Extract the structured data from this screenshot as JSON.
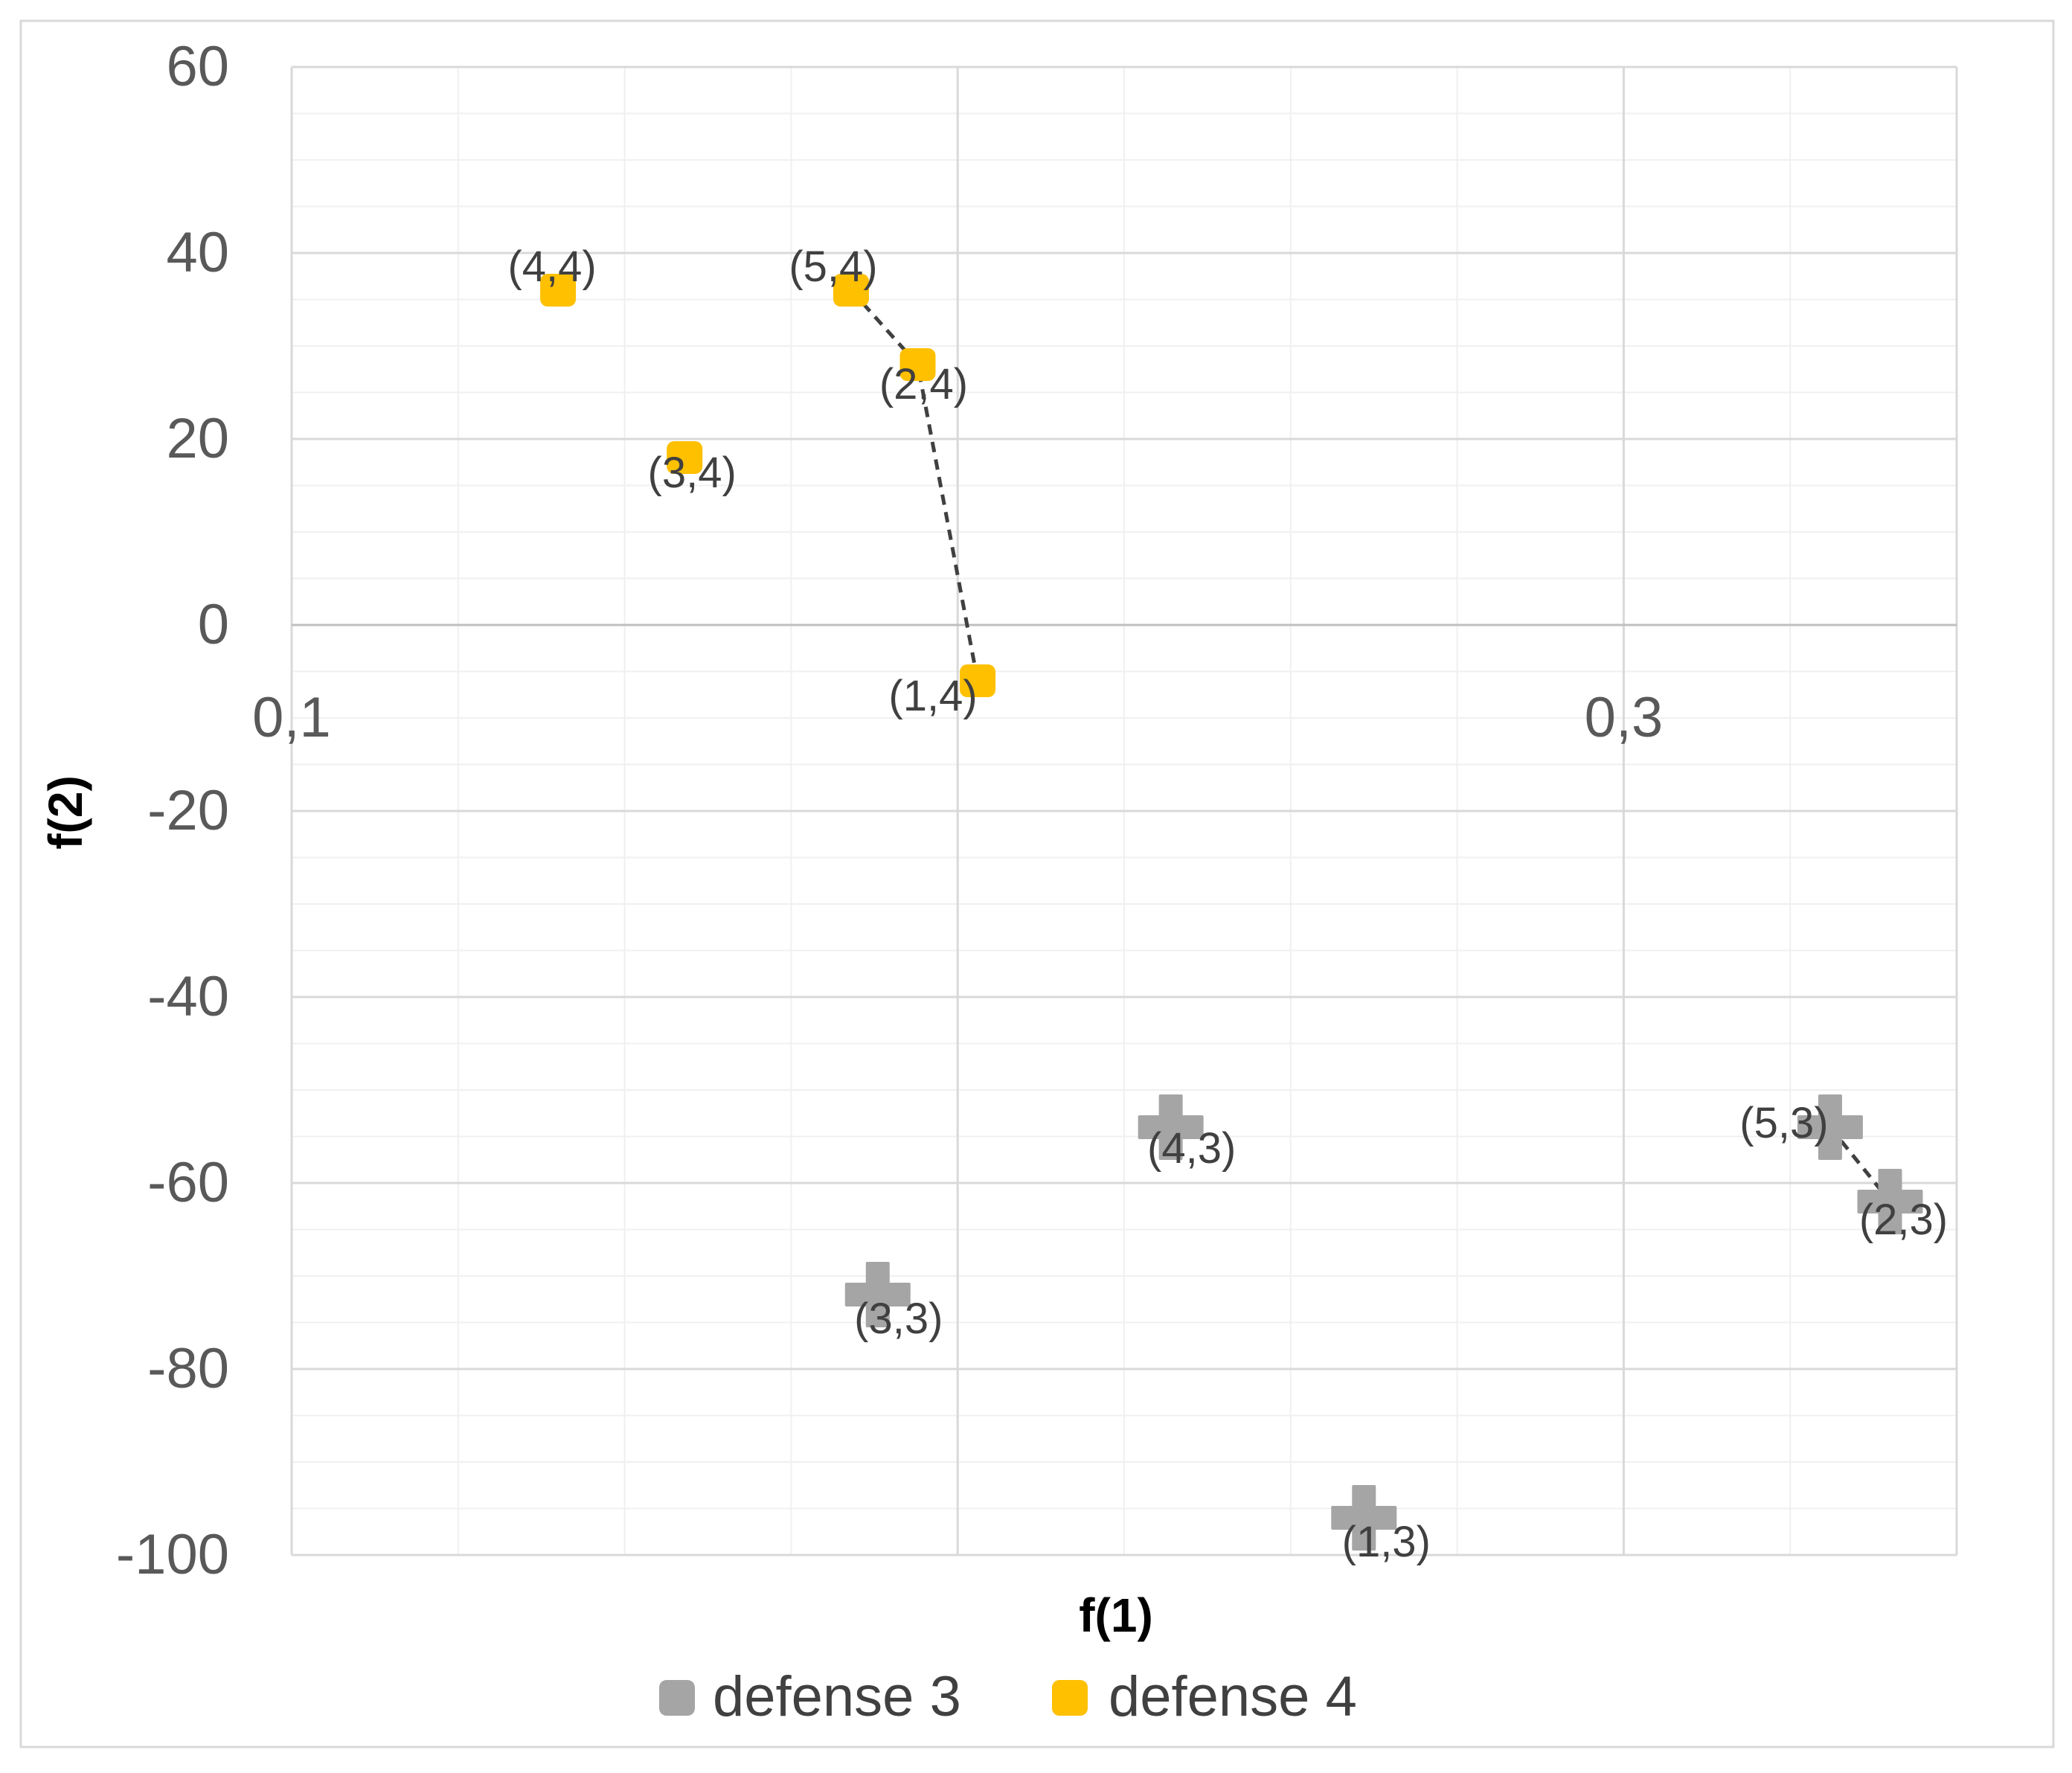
{
  "chart_data": {
    "type": "scatter",
    "title": "",
    "xlabel": "f(1)",
    "ylabel": "f(2)",
    "xlim": [
      0.1,
      0.35
    ],
    "ylim": [
      -100,
      60
    ],
    "x_ticks": [
      {
        "value": 0.1,
        "label": "0,1"
      },
      {
        "value": 0.3,
        "label": "0,3"
      }
    ],
    "y_ticks": [
      {
        "value": 60,
        "label": "60"
      },
      {
        "value": 40,
        "label": "40"
      },
      {
        "value": 20,
        "label": "20"
      },
      {
        "value": 0,
        "label": "0"
      },
      {
        "value": -20,
        "label": "-20"
      },
      {
        "value": -40,
        "label": "-40"
      },
      {
        "value": -60,
        "label": "-60"
      },
      {
        "value": -80,
        "label": "-80"
      },
      {
        "value": -100,
        "label": "-100"
      }
    ],
    "grid": true,
    "legend_position": "bottom",
    "series": [
      {
        "name": "defense 3",
        "color": "#A5A5A5",
        "marker": "plus",
        "points": [
          {
            "label": "(1,3)",
            "x": 0.261,
            "y": -96
          },
          {
            "label": "(2,3)",
            "x": 0.34,
            "y": -62
          },
          {
            "label": "(3,3)",
            "x": 0.188,
            "y": -72
          },
          {
            "label": "(4,3)",
            "x": 0.232,
            "y": -54
          },
          {
            "label": "(5,3)",
            "x": 0.331,
            "y": -54
          }
        ],
        "frontier": [
          "(5,3)",
          "(2,3)"
        ]
      },
      {
        "name": "defense 4",
        "color": "#FFC000",
        "marker": "square",
        "points": [
          {
            "label": "(1,4)",
            "x": 0.203,
            "y": -6
          },
          {
            "label": "(2,4)",
            "x": 0.194,
            "y": 28
          },
          {
            "label": "(3,4)",
            "x": 0.159,
            "y": 18
          },
          {
            "label": "(4,4)",
            "x": 0.14,
            "y": 36
          },
          {
            "label": "(5,4)",
            "x": 0.184,
            "y": 36
          }
        ],
        "frontier": [
          "(5,4)",
          "(2,4)",
          "(1,4)"
        ]
      }
    ]
  }
}
